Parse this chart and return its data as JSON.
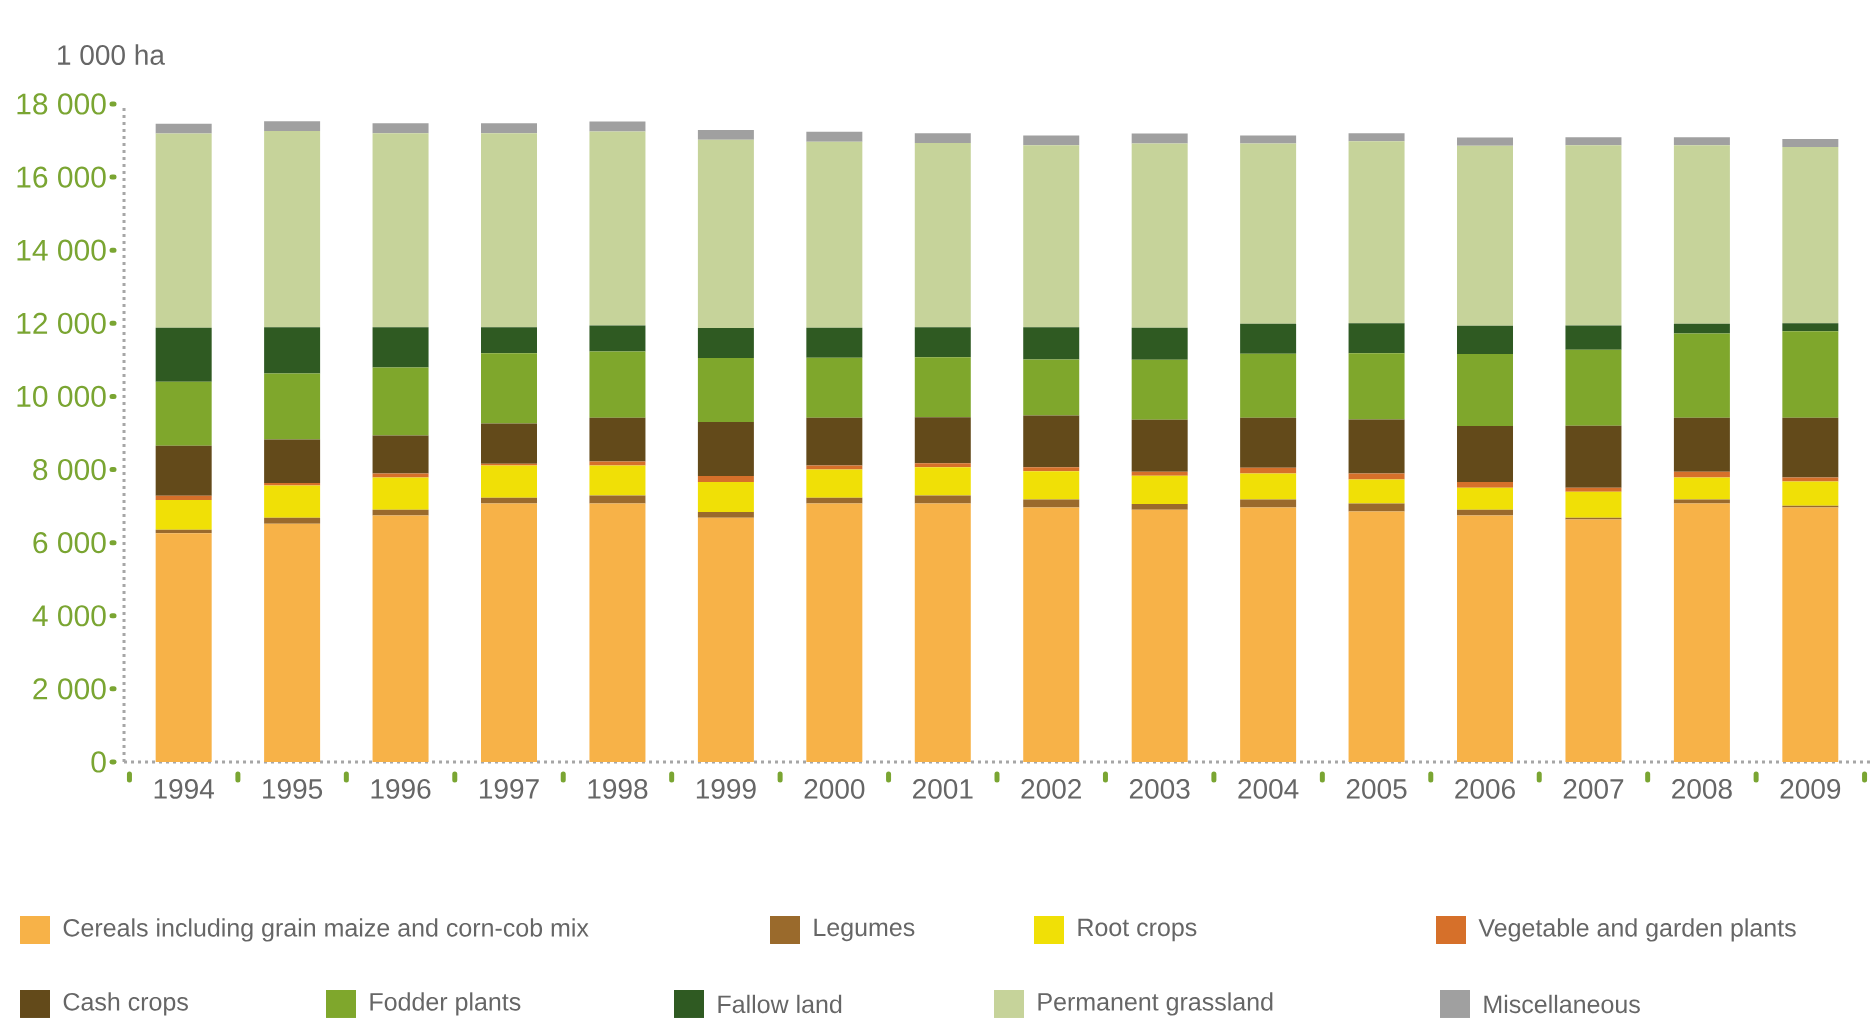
{
  "chart_data": {
    "type": "bar",
    "stacked": true,
    "ylabel": "1 000 ha",
    "categories": [
      "1994",
      "1995",
      "1996",
      "1997",
      "1998",
      "1999",
      "2000",
      "2001",
      "2002",
      "2003",
      "2004",
      "2005",
      "2006",
      "2007",
      "2008",
      "2009"
    ],
    "ylim": [
      0,
      18000
    ],
    "yticks": [
      {
        "value": 0,
        "label": "0"
      },
      {
        "value": 2000,
        "label": "2 000"
      },
      {
        "value": 4000,
        "label": "4 000"
      },
      {
        "value": 6000,
        "label": "6 000"
      },
      {
        "value": 8000,
        "label": "8 000"
      },
      {
        "value": 10000,
        "label": "10 000"
      },
      {
        "value": 12000,
        "label": "12 000"
      },
      {
        "value": 14000,
        "label": "14 000"
      },
      {
        "value": 16000,
        "label": "16 000"
      },
      {
        "value": 18000,
        "label": "18 000"
      }
    ],
    "grid": false,
    "legend": "bottom",
    "series": [
      {
        "name": "Cereals including grain maize  and corn-cob mix",
        "color": "#f7b248",
        "values": [
          6260,
          6520,
          6740,
          7070,
          7070,
          6680,
          7070,
          7070,
          6960,
          6900,
          6960,
          6850,
          6740,
          6630,
          7070,
          6960
        ]
      },
      {
        "name": "Legumes",
        "color": "#9a6a2c",
        "values": [
          90,
          160,
          160,
          160,
          220,
          160,
          160,
          220,
          220,
          160,
          220,
          220,
          160,
          50,
          110,
          50
        ]
      },
      {
        "name": "Root crops",
        "color": "#f0e006",
        "values": [
          820,
          880,
          880,
          880,
          820,
          820,
          770,
          770,
          770,
          770,
          710,
          660,
          600,
          710,
          600,
          660
        ]
      },
      {
        "name": "Vegetable and garden plants",
        "color": "#d6702a",
        "values": [
          110,
          70,
          110,
          50,
          110,
          160,
          110,
          110,
          110,
          110,
          160,
          160,
          160,
          110,
          160,
          110
        ]
      },
      {
        "name": "Cash crops",
        "color": "#634a1a",
        "values": [
          1370,
          1190,
          1040,
          1100,
          1200,
          1480,
          1310,
          1260,
          1420,
          1420,
          1370,
          1480,
          1530,
          1700,
          1480,
          1640
        ]
      },
      {
        "name": "Fodder plants",
        "color": "#7fa72c",
        "values": [
          1750,
          1810,
          1860,
          1920,
          1810,
          1750,
          1640,
          1640,
          1530,
          1640,
          1750,
          1810,
          1970,
          2080,
          2300,
          2360
        ]
      },
      {
        "name": "Fallow land",
        "color": "#2f5a22",
        "values": [
          1480,
          1260,
          1100,
          710,
          710,
          820,
          820,
          820,
          880,
          880,
          820,
          820,
          770,
          660,
          270,
          220
        ]
      },
      {
        "name": "Permanent grassland",
        "color": "#c6d39a",
        "values": [
          5310,
          5370,
          5310,
          5310,
          5310,
          5150,
          5090,
          5040,
          4980,
          5040,
          4930,
          4980,
          4930,
          4930,
          4880,
          4820
        ]
      },
      {
        "name": "Miscellaneous",
        "color": "#a0a0a0",
        "values": [
          270,
          270,
          270,
          270,
          270,
          270,
          270,
          270,
          270,
          270,
          220,
          220,
          220,
          220,
          220,
          220
        ]
      }
    ]
  }
}
